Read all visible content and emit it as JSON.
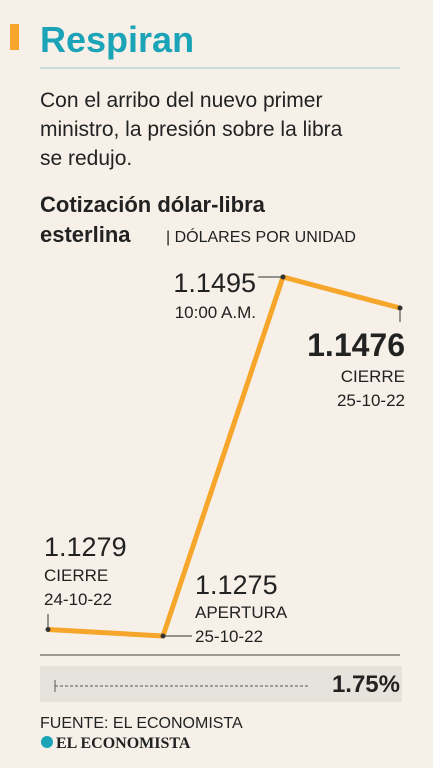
{
  "chart_data": {
    "type": "line",
    "title": "Respiran",
    "subtitle": [
      "Con el arribo del nuevo primer",
      "ministro, la presión sobre la libra",
      "se redujo."
    ],
    "chart_title": [
      "Cotización dólar-libra",
      "esterlina"
    ],
    "unit": "| DÓLARES POR UNIDAD",
    "categories": [
      [
        "CIERRE",
        "24-10-22"
      ],
      [
        "APERTURA",
        "25-10-22"
      ],
      [
        "10:00 A.M."
      ],
      [
        "CIERRE",
        "25-10-22"
      ]
    ],
    "values": [
      1.1279,
      1.1275,
      1.1495,
      1.1476
    ],
    "color": "#f5a62b",
    "change": {
      "value": 1.75,
      "label": "1.75%"
    },
    "source": "FUENTE: EL ECONOMISTA",
    "logo": "EL ECONOMISTA"
  }
}
